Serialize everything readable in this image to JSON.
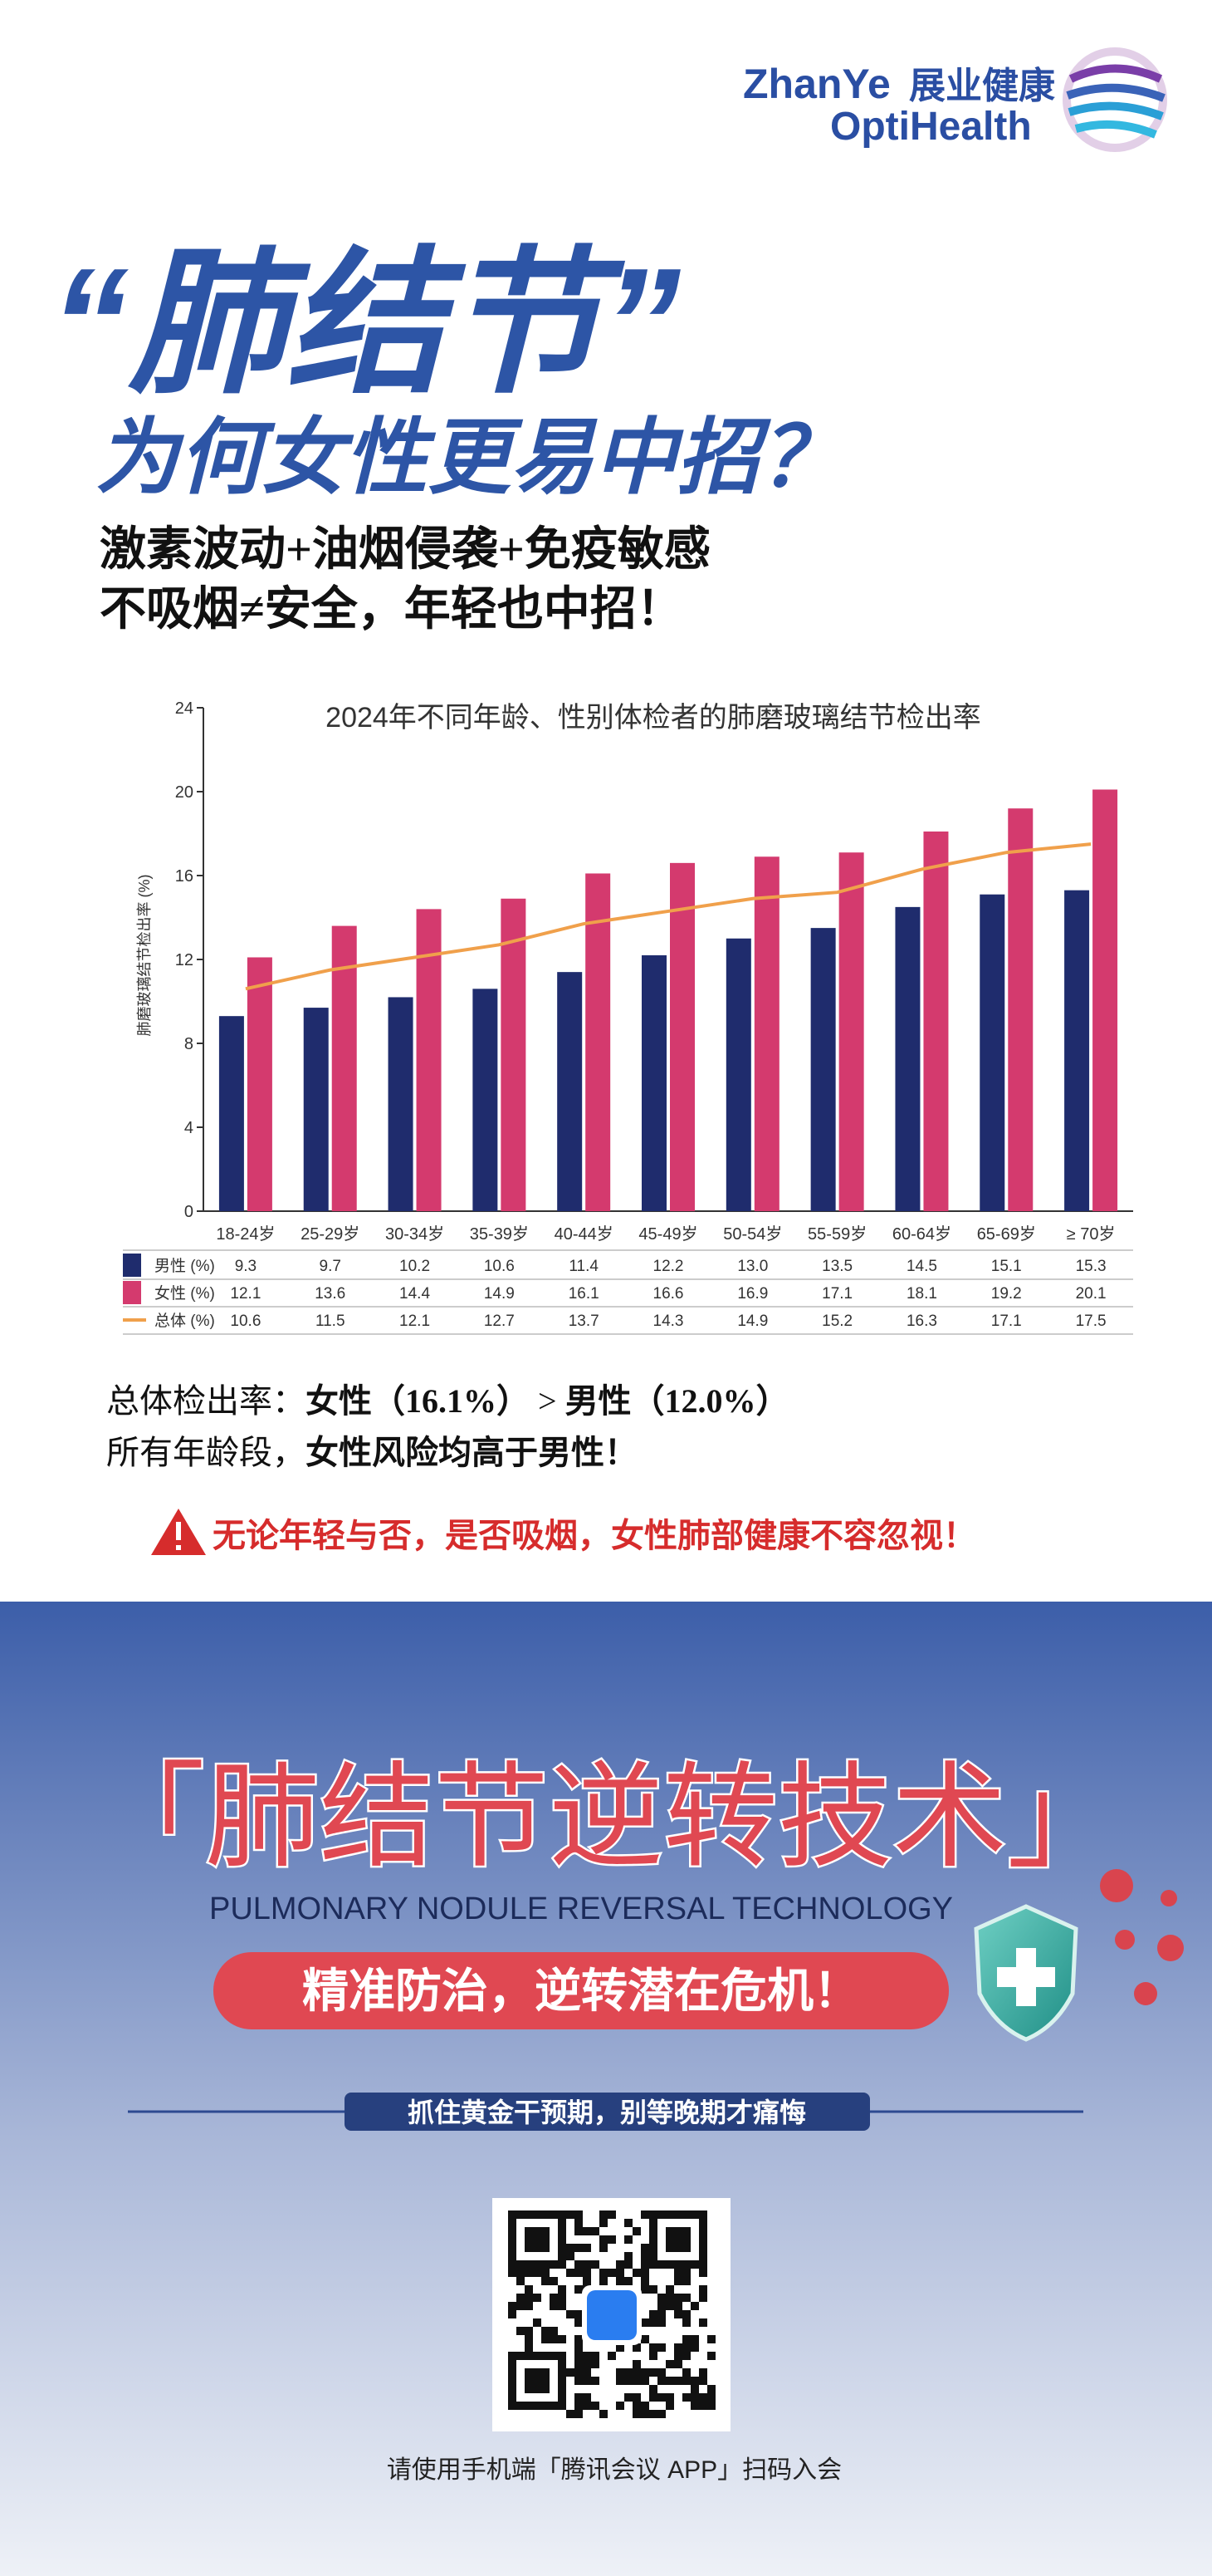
{
  "header": {
    "brand_en": "ZhanYe",
    "brand_cn": "展业健康",
    "brand_sub": "OptiHealth"
  },
  "headline": {
    "title": "“肺结节”",
    "subtitle": "为何女性更易中招？",
    "points": [
      "激素波动+油烟侵袭+免疫敏感",
      "不吸烟≠安全，年轻也中招！"
    ]
  },
  "chart_data": {
    "type": "bar",
    "title": "2024年不同年龄、性别体检者的肺磨玻璃结节检出率",
    "y_label": "肺磨玻璃结节检出率 (%)",
    "categories": [
      "18-24岁",
      "25-29岁",
      "30-34岁",
      "35-39岁",
      "40-44岁",
      "45-49岁",
      "50-54岁",
      "55-59岁",
      "60-64岁",
      "65-69岁",
      "≥ 70岁"
    ],
    "series": [
      {
        "name": "男性 (%)",
        "color": "#1f2c6d",
        "values": [
          9.3,
          9.7,
          10.2,
          10.6,
          11.4,
          12.2,
          13.0,
          13.5,
          14.5,
          15.1,
          15.3
        ],
        "value_labels": [
          "9.3",
          "9.7",
          "10.2",
          "10.6",
          "11.4",
          "12.2",
          "13.0",
          "13.5",
          "14.5",
          "15.1",
          "15.3"
        ]
      },
      {
        "name": "女性 (%)",
        "color": "#d43a6e",
        "values": [
          12.1,
          13.6,
          14.4,
          14.9,
          16.1,
          16.6,
          16.9,
          17.1,
          18.1,
          19.2,
          20.1
        ]
      },
      {
        "name": "总体 (%)",
        "type": "line",
        "color": "#f0a04b",
        "values": [
          10.6,
          11.5,
          12.1,
          12.7,
          13.7,
          14.3,
          14.9,
          15.2,
          16.3,
          17.1,
          17.5
        ]
      }
    ],
    "ylim": [
      0,
      24
    ],
    "yticks": [
      0,
      4,
      8,
      12,
      16,
      20,
      24
    ],
    "grid": false,
    "legend": "table"
  },
  "summary": {
    "line1": [
      "总体检出率：",
      "女性（16.1%）",
      " > ",
      "男性（12.0%）"
    ],
    "line2": [
      "所有年龄段，",
      "女性风险均高于男性！"
    ],
    "warning": "无论年轻与否，是否吸烟，女性肺部健康不容忽视！"
  },
  "promo": {
    "title": "「肺结节逆转技术」",
    "title_en": "PULMONARY NODULE REVERSAL TECHNOLOGY",
    "slogan": "精准防治，逆转潜在危机！",
    "tagline": "抓住黄金干预期，别等晚期才痛悔"
  },
  "footer": {
    "qr_hint": "请使用手机端「腾讯会议 APP」扫码入会"
  }
}
